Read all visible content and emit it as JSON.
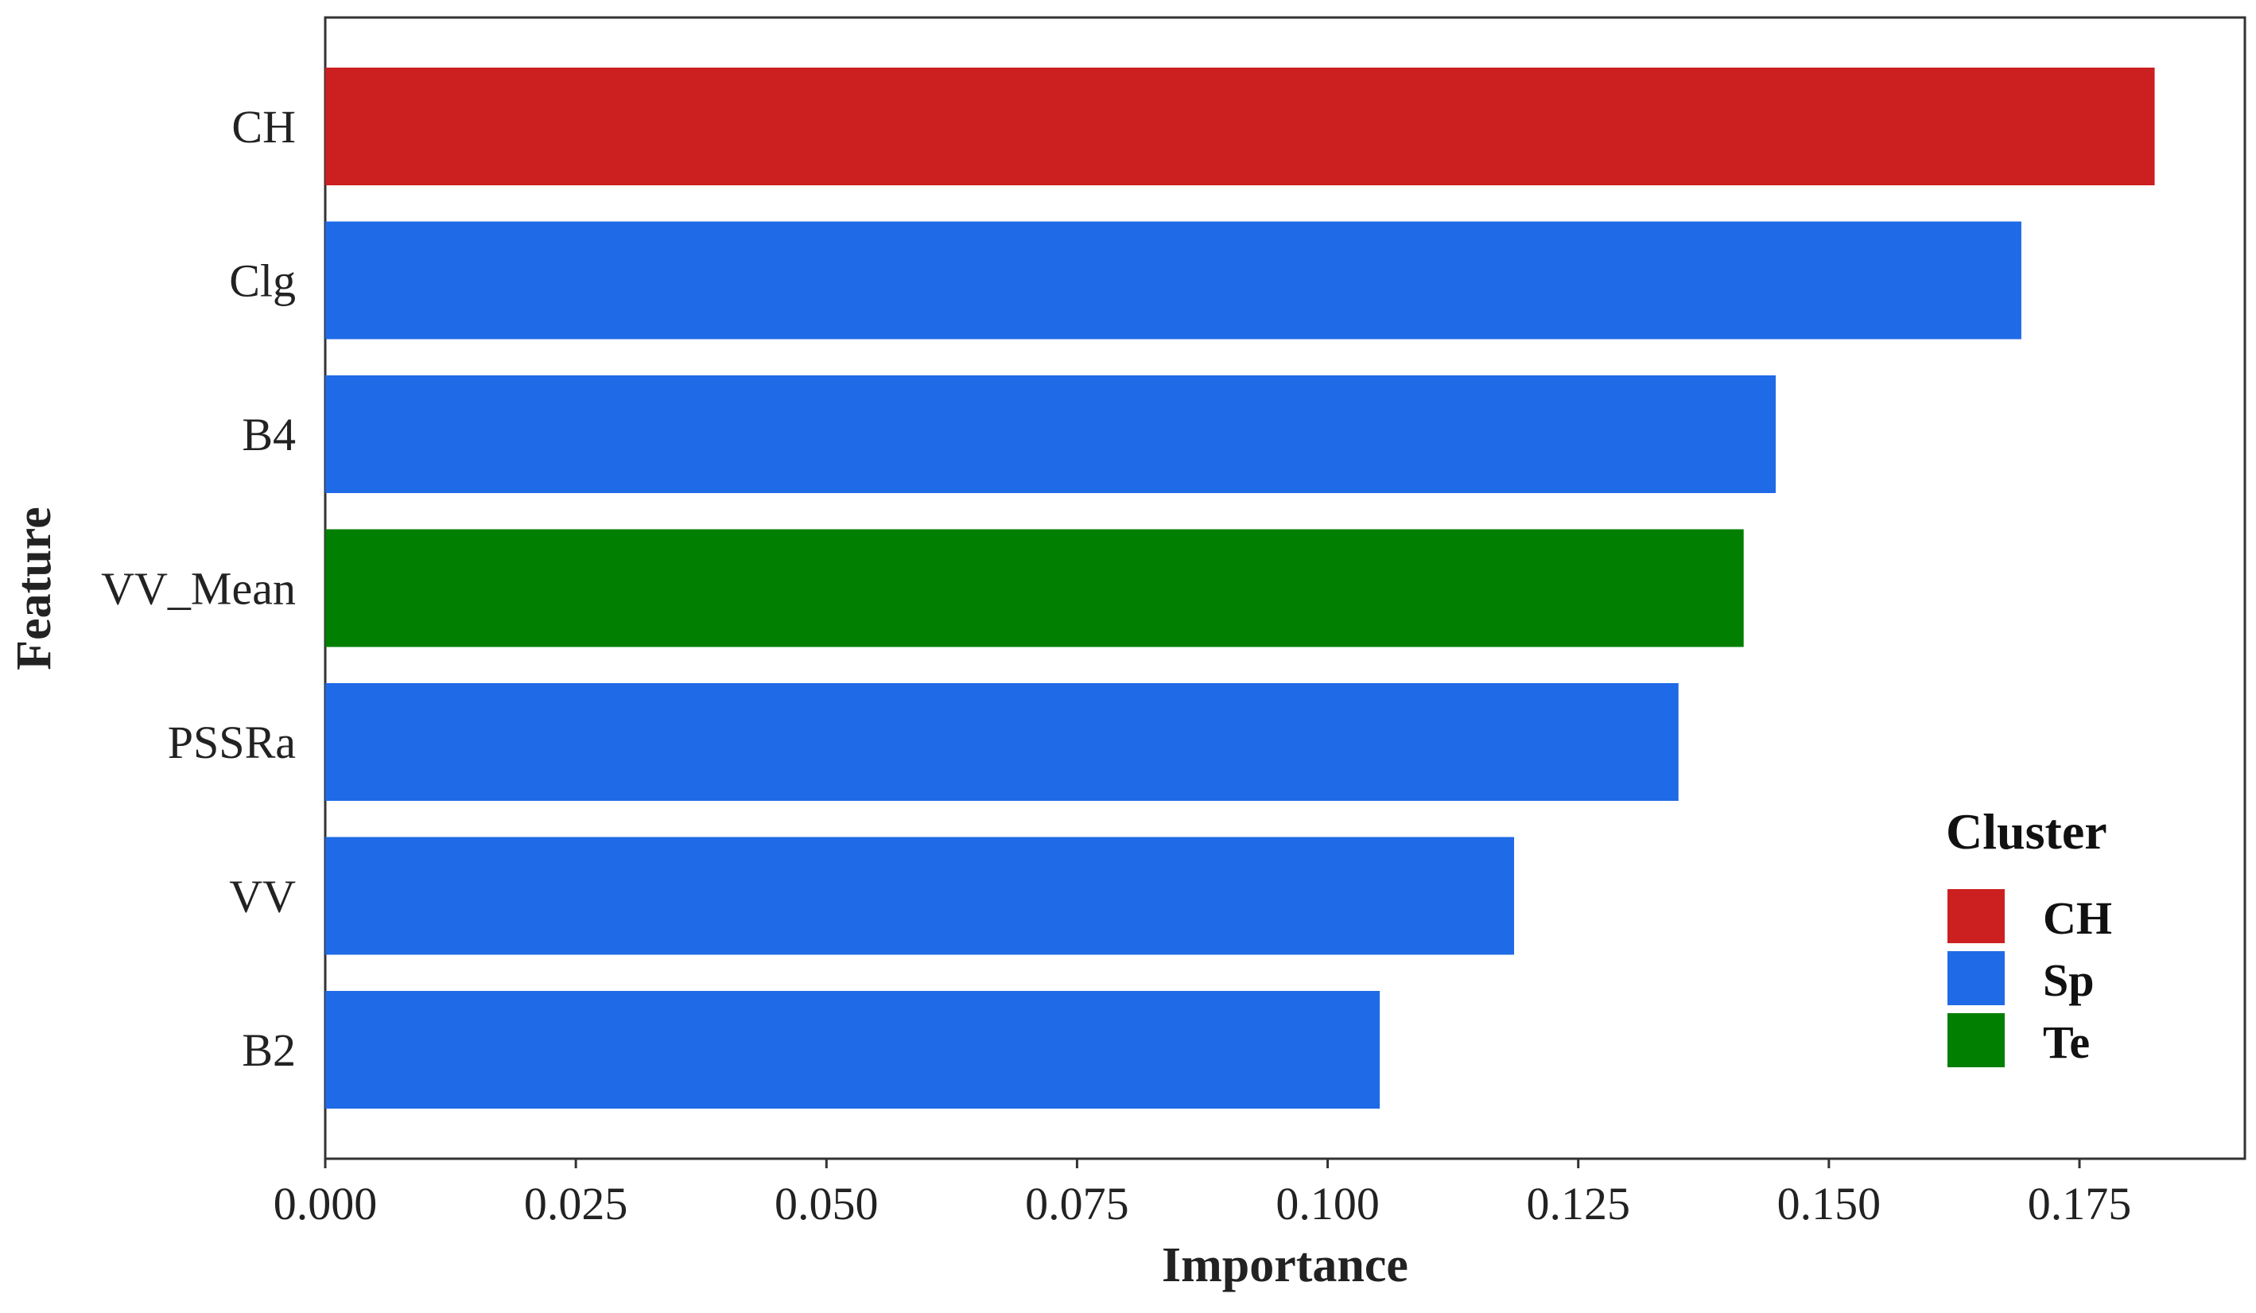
{
  "chart_data": {
    "type": "bar",
    "orientation": "horizontal",
    "xlabel": "Importance",
    "ylabel": "Feature",
    "xlim": [
      0,
      0.1915
    ],
    "x_ticks": [
      "0.000",
      "0.025",
      "0.050",
      "0.075",
      "0.100",
      "0.125",
      "0.150",
      "0.175"
    ],
    "x_tick_values": [
      0,
      0.025,
      0.05,
      0.075,
      0.1,
      0.125,
      0.15,
      0.175
    ],
    "grid": false,
    "legend_position": "bottom-right",
    "bars": [
      {
        "feature": "CH",
        "value": 0.1825,
        "cluster": "CH"
      },
      {
        "feature": "Clg",
        "value": 0.1692,
        "cluster": "Sp"
      },
      {
        "feature": "B4",
        "value": 0.1447,
        "cluster": "Sp"
      },
      {
        "feature": "VV_Mean",
        "value": 0.1415,
        "cluster": "Te"
      },
      {
        "feature": "PSSRa",
        "value": 0.135,
        "cluster": "Sp"
      },
      {
        "feature": "VV",
        "value": 0.1186,
        "cluster": "Sp"
      },
      {
        "feature": "B2",
        "value": 0.1052,
        "cluster": "Sp"
      }
    ],
    "legend": {
      "title": "Cluster",
      "items": [
        {
          "label": "CH",
          "color": "#cc1f1f"
        },
        {
          "label": "Sp",
          "color": "#1f6ae6"
        },
        {
          "label": "Te",
          "color": "#007f00"
        }
      ]
    }
  }
}
